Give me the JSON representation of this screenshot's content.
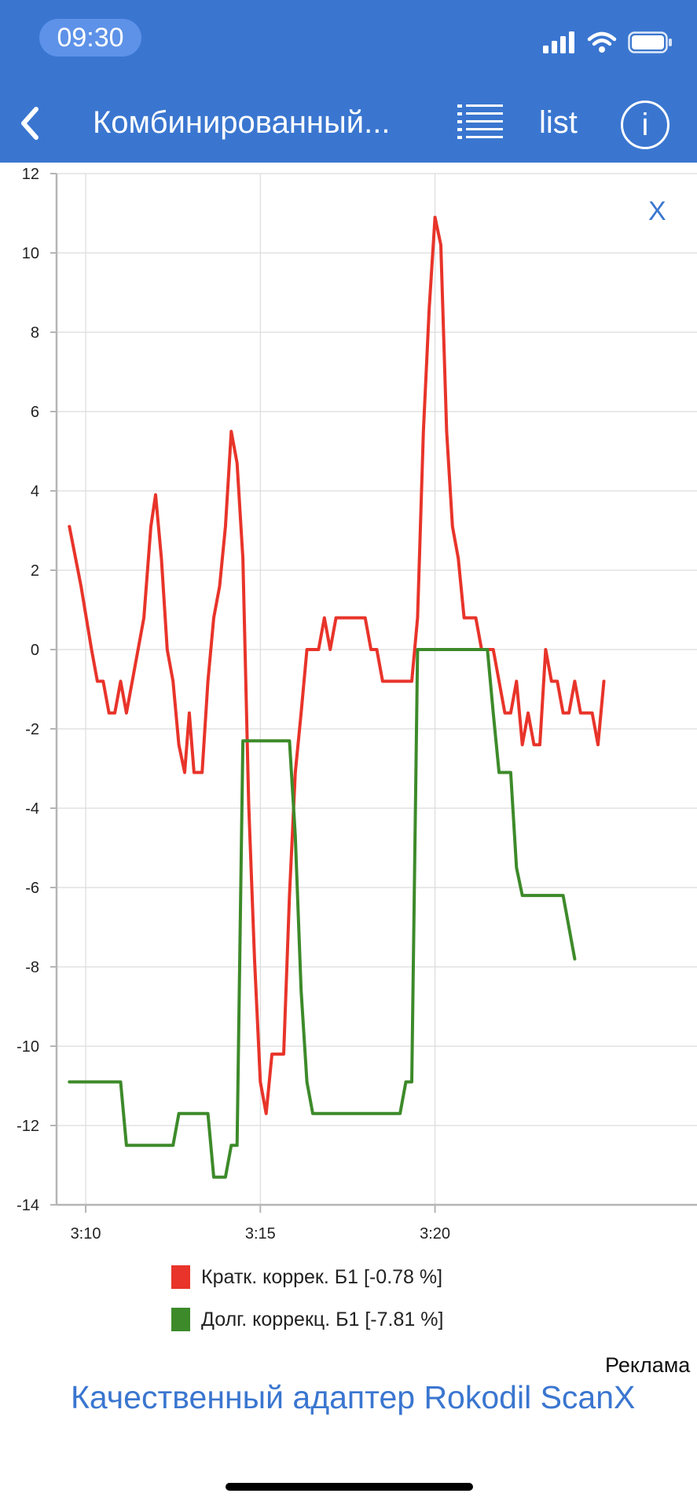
{
  "status_bar": {
    "time": "09:30"
  },
  "nav": {
    "title": "Комбинированный...",
    "list_label": "list",
    "info_label": "i",
    "menu_icon": "list-menu-icon",
    "back_icon": "chevron-left-icon"
  },
  "close_label": "X",
  "colors": {
    "header": "#3a76d0",
    "short_trim": "#e8342a",
    "long_trim": "#3d8a2a",
    "link": "#3a76d0"
  },
  "chart_data": {
    "type": "line",
    "ylim": [
      -14,
      12
    ],
    "xlim": [
      3.075,
      3.625
    ],
    "y_ticks": [
      "12",
      "10",
      "8",
      "6",
      "4",
      "2",
      "0",
      "-2",
      "-4",
      "-6",
      "-8",
      "-10",
      "-12",
      "-14"
    ],
    "x_ticks": [
      {
        "label": "3:10",
        "value": 3.1
      },
      {
        "label": "3:15",
        "value": 3.25
      },
      {
        "label": "3:20",
        "value": 3.4
      }
    ],
    "grid": true,
    "legend_position": "bottom",
    "series": [
      {
        "name": "Кратк. коррек. Б1 [-0.78 %]",
        "color": "#e8342a",
        "points": [
          [
            3.086,
            3.1
          ],
          [
            3.096,
            1.6
          ],
          [
            3.105,
            0.0
          ],
          [
            3.11,
            -0.8
          ],
          [
            3.115,
            -0.8
          ],
          [
            3.12,
            -1.6
          ],
          [
            3.125,
            -1.6
          ],
          [
            3.13,
            -0.8
          ],
          [
            3.135,
            -1.6
          ],
          [
            3.14,
            -0.8
          ],
          [
            3.15,
            0.8
          ],
          [
            3.156,
            3.1
          ],
          [
            3.16,
            3.9
          ],
          [
            3.165,
            2.3
          ],
          [
            3.17,
            0.0
          ],
          [
            3.175,
            -0.8
          ],
          [
            3.18,
            -2.4
          ],
          [
            3.185,
            -3.1
          ],
          [
            3.189,
            -1.6
          ],
          [
            3.193,
            -3.1
          ],
          [
            3.2,
            -3.1
          ],
          [
            3.205,
            -0.8
          ],
          [
            3.21,
            0.8
          ],
          [
            3.215,
            1.6
          ],
          [
            3.22,
            3.1
          ],
          [
            3.225,
            5.5
          ],
          [
            3.23,
            4.7
          ],
          [
            3.235,
            2.3
          ],
          [
            3.24,
            -3.9
          ],
          [
            3.245,
            -7.8
          ],
          [
            3.25,
            -10.9
          ],
          [
            3.255,
            -11.7
          ],
          [
            3.26,
            -10.2
          ],
          [
            3.27,
            -10.2
          ],
          [
            3.275,
            -6.2
          ],
          [
            3.28,
            -3.1
          ],
          [
            3.285,
            -1.6
          ],
          [
            3.29,
            0.0
          ],
          [
            3.3,
            0.0
          ],
          [
            3.305,
            0.8
          ],
          [
            3.31,
            0.0
          ],
          [
            3.315,
            0.8
          ],
          [
            3.34,
            0.8
          ],
          [
            3.345,
            0.0
          ],
          [
            3.35,
            0.0
          ],
          [
            3.355,
            -0.8
          ],
          [
            3.38,
            -0.8
          ],
          [
            3.385,
            0.8
          ],
          [
            3.39,
            5.5
          ],
          [
            3.395,
            8.6
          ],
          [
            3.4,
            10.9
          ],
          [
            3.405,
            10.2
          ],
          [
            3.41,
            5.5
          ],
          [
            3.415,
            3.1
          ],
          [
            3.42,
            2.3
          ],
          [
            3.425,
            0.8
          ],
          [
            3.435,
            0.8
          ],
          [
            3.44,
            0.0
          ],
          [
            3.45,
            0.0
          ],
          [
            3.455,
            -0.8
          ],
          [
            3.46,
            -1.6
          ],
          [
            3.465,
            -1.6
          ],
          [
            3.47,
            -0.8
          ],
          [
            3.475,
            -2.4
          ],
          [
            3.48,
            -1.6
          ],
          [
            3.485,
            -2.4
          ],
          [
            3.49,
            -2.4
          ],
          [
            3.495,
            0.0
          ],
          [
            3.5,
            -0.8
          ],
          [
            3.505,
            -0.8
          ],
          [
            3.51,
            -1.6
          ],
          [
            3.515,
            -1.6
          ],
          [
            3.52,
            -0.8
          ],
          [
            3.525,
            -1.6
          ],
          [
            3.535,
            -1.6
          ],
          [
            3.54,
            -2.4
          ],
          [
            3.545,
            -0.8
          ]
        ]
      },
      {
        "name": "Долг. коррекц. Б1 [-7.81 %]",
        "color": "#3d8a2a",
        "points": [
          [
            3.086,
            -10.9
          ],
          [
            3.13,
            -10.9
          ],
          [
            3.135,
            -12.5
          ],
          [
            3.175,
            -12.5
          ],
          [
            3.18,
            -11.7
          ],
          [
            3.205,
            -11.7
          ],
          [
            3.21,
            -13.3
          ],
          [
            3.22,
            -13.3
          ],
          [
            3.225,
            -12.5
          ],
          [
            3.23,
            -12.5
          ],
          [
            3.235,
            -2.3
          ],
          [
            3.275,
            -2.3
          ],
          [
            3.28,
            -4.7
          ],
          [
            3.285,
            -8.6
          ],
          [
            3.29,
            -10.9
          ],
          [
            3.295,
            -11.7
          ],
          [
            3.37,
            -11.7
          ],
          [
            3.375,
            -10.9
          ],
          [
            3.38,
            -10.9
          ],
          [
            3.385,
            0.0
          ],
          [
            3.445,
            0.0
          ],
          [
            3.45,
            -1.6
          ],
          [
            3.455,
            -3.1
          ],
          [
            3.465,
            -3.1
          ],
          [
            3.47,
            -5.5
          ],
          [
            3.475,
            -6.2
          ],
          [
            3.51,
            -6.2
          ],
          [
            3.515,
            -7.0
          ],
          [
            3.52,
            -7.8
          ]
        ]
      }
    ]
  },
  "ad": {
    "label": "Реклама",
    "link_text": "Качественный адаптер Rokodil ScanX"
  }
}
